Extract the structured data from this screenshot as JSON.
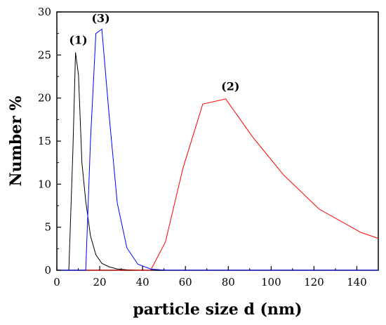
{
  "chart_data": {
    "type": "line",
    "xlabel": "particle size d (nm)",
    "ylabel": "Number %",
    "xlim": [
      0,
      150
    ],
    "ylim": [
      0,
      30
    ],
    "xticks": [
      0,
      20,
      40,
      60,
      80,
      100,
      120,
      140
    ],
    "yticks": [
      0,
      5,
      10,
      15,
      20,
      25,
      30
    ],
    "grid": false,
    "legend": "none",
    "series": [
      {
        "color": "#000000",
        "x": [
          0,
          5.6,
          7.5,
          8.7,
          10.1,
          11.7,
          13.5,
          15.7,
          18.2,
          21.0,
          24.4,
          28.2,
          32.7,
          37.8,
          150
        ],
        "y": [
          0,
          0,
          14.0,
          25.3,
          22.7,
          12.5,
          8.0,
          4.0,
          1.8,
          0.8,
          0.4,
          0.15,
          0.05,
          0,
          0
        ]
      },
      {
        "color": "#ff0000",
        "x": [
          0,
          43.8,
          50.7,
          58.8,
          68.1,
          78.8,
          91.3,
          105.7,
          122.4,
          141.8,
          150
        ],
        "y": [
          0,
          0,
          3.3,
          11.8,
          19.3,
          19.9,
          15.5,
          11.1,
          7.1,
          4.4,
          3.7
        ]
      },
      {
        "color": "#0000ff",
        "x": [
          0,
          13.5,
          15.7,
          18.2,
          21.0,
          24.4,
          28.2,
          32.7,
          37.8,
          43.8,
          50.7,
          150
        ],
        "y": [
          0,
          0,
          15.0,
          27.5,
          28.0,
          18.0,
          7.8,
          2.6,
          0.7,
          0.15,
          0,
          0
        ]
      }
    ],
    "annotations": [
      {
        "text": "(1)",
        "x": 10,
        "y": 26.3
      },
      {
        "text": "(3)",
        "x": 20.5,
        "y": 28.8
      },
      {
        "text": "(2)",
        "x": 81,
        "y": 20.9
      }
    ]
  }
}
